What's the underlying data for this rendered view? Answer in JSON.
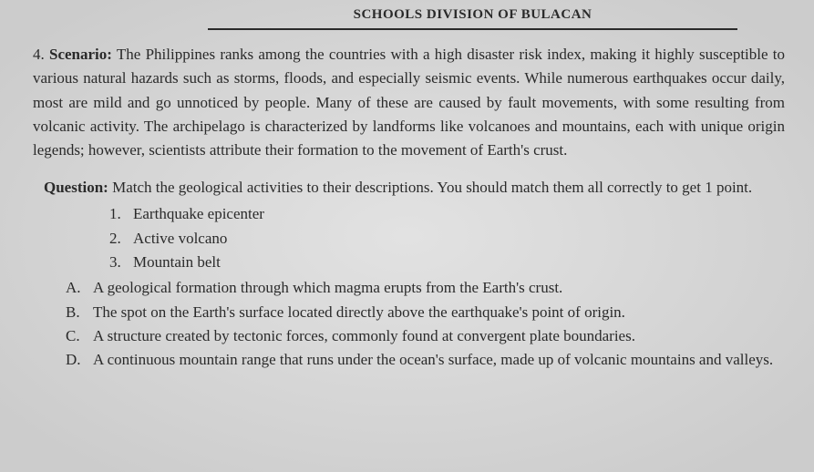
{
  "header": {
    "title": "SCHOOLS DIVISION OF BULACAN"
  },
  "scenario": {
    "number": "4.",
    "label": "Scenario:",
    "text": "The Philippines ranks among the countries with a high disaster risk index, making it highly susceptible to various natural hazards such as storms, floods, and especially seismic events. While numerous earthquakes occur daily, most are mild and go unnoticed by people. Many of these are caused by fault movements, with some resulting from volcanic activity. The archipelago is characterized by landforms like volcanoes and mountains, each with unique origin legends; however, scientists attribute their formation to the movement of Earth's crust."
  },
  "question": {
    "label": "Question:",
    "text": "Match the geological activities to their descriptions. You should match them all correctly to get 1 point."
  },
  "numbered": [
    {
      "num": "1.",
      "text": "Earthquake epicenter"
    },
    {
      "num": "2.",
      "text": "Active volcano"
    },
    {
      "num": "3.",
      "text": "Mountain belt"
    }
  ],
  "lettered": [
    {
      "letter": "A.",
      "text": "A geological formation through which magma erupts from the Earth's crust."
    },
    {
      "letter": "B.",
      "text": "The spot on the Earth's surface located directly above the earthquake's point of origin."
    },
    {
      "letter": "C.",
      "text": "A structure created by tectonic forces, commonly found at convergent plate boundaries."
    },
    {
      "letter": "D.",
      "text": "A continuous mountain range that runs under the ocean's surface, made up of volcanic mountains and valleys."
    }
  ]
}
